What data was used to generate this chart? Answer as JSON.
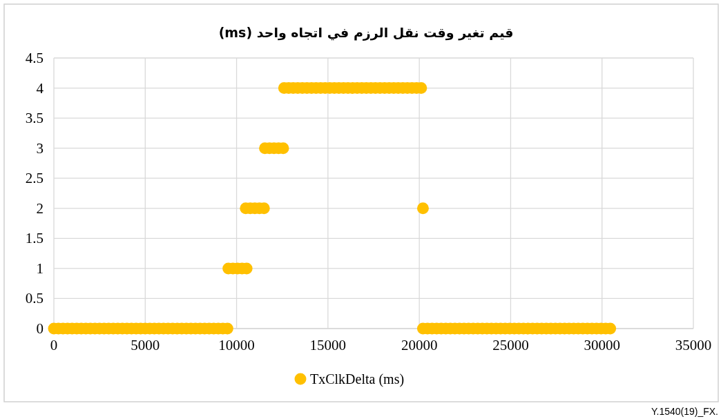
{
  "chart_data": {
    "type": "scatter",
    "title": "قيم تغير وقت نقل الرزم في اتجاه واحد (ms)",
    "xlim": [
      0,
      35000
    ],
    "xticks": [
      0,
      5000,
      10000,
      15000,
      20000,
      25000,
      30000,
      35000
    ],
    "ylim": [
      0,
      4.5
    ],
    "yticks": [
      0,
      0.5,
      1,
      1.5,
      2,
      2.5,
      3,
      3.5,
      4,
      4.5
    ],
    "grid": true,
    "legend": "bottom",
    "marker": "circle",
    "annotations": [
      "Y.1540(19)_FX."
    ],
    "series": [
      {
        "name": "TxClkDelta (ms)",
        "color": "#ffc000",
        "x": [
          0,
          250,
          500,
          750,
          1000,
          1250,
          1500,
          1750,
          2000,
          2250,
          2500,
          2750,
          3000,
          3250,
          3500,
          3750,
          4000,
          4250,
          4500,
          4750,
          5000,
          5250,
          5500,
          5750,
          6000,
          6250,
          6500,
          6750,
          7000,
          7250,
          7500,
          7750,
          8000,
          8250,
          8500,
          8750,
          9000,
          9250,
          9500,
          9550,
          9800,
          10050,
          10300,
          10550,
          10500,
          10750,
          11000,
          11250,
          11500,
          11550,
          11800,
          12050,
          12300,
          12550,
          12600,
          12850,
          13100,
          13350,
          13600,
          13850,
          14100,
          14350,
          14600,
          14850,
          15100,
          15350,
          15600,
          15850,
          16100,
          16350,
          16600,
          16850,
          17100,
          17350,
          17600,
          17850,
          18100,
          18350,
          18600,
          18850,
          19100,
          19350,
          19600,
          19850,
          20100,
          20200,
          20200,
          20450,
          20700,
          20950,
          21200,
          21450,
          21700,
          21950,
          22200,
          22450,
          22700,
          22950,
          23200,
          23450,
          23700,
          23950,
          24200,
          24450,
          24700,
          24950,
          25200,
          25450,
          25700,
          25950,
          26200,
          26450,
          26700,
          26950,
          27200,
          27450,
          27700,
          27950,
          28200,
          28450,
          28700,
          28950,
          29200,
          29450,
          29700,
          29950,
          30200,
          30450
        ],
        "values": [
          0,
          0,
          0,
          0,
          0,
          0,
          0,
          0,
          0,
          0,
          0,
          0,
          0,
          0,
          0,
          0,
          0,
          0,
          0,
          0,
          0,
          0,
          0,
          0,
          0,
          0,
          0,
          0,
          0,
          0,
          0,
          0,
          0,
          0,
          0,
          0,
          0,
          0,
          0,
          1,
          1,
          1,
          1,
          1,
          2,
          2,
          2,
          2,
          2,
          3,
          3,
          3,
          3,
          3,
          4,
          4,
          4,
          4,
          4,
          4,
          4,
          4,
          4,
          4,
          4,
          4,
          4,
          4,
          4,
          4,
          4,
          4,
          4,
          4,
          4,
          4,
          4,
          4,
          4,
          4,
          4,
          4,
          4,
          4,
          4,
          2,
          0,
          0,
          0,
          0,
          0,
          0,
          0,
          0,
          0,
          0,
          0,
          0,
          0,
          0,
          0,
          0,
          0,
          0,
          0,
          0,
          0,
          0,
          0,
          0,
          0,
          0,
          0,
          0,
          0,
          0,
          0,
          0,
          0,
          0,
          0,
          0,
          0,
          0,
          0,
          0,
          0,
          0
        ]
      }
    ]
  }
}
